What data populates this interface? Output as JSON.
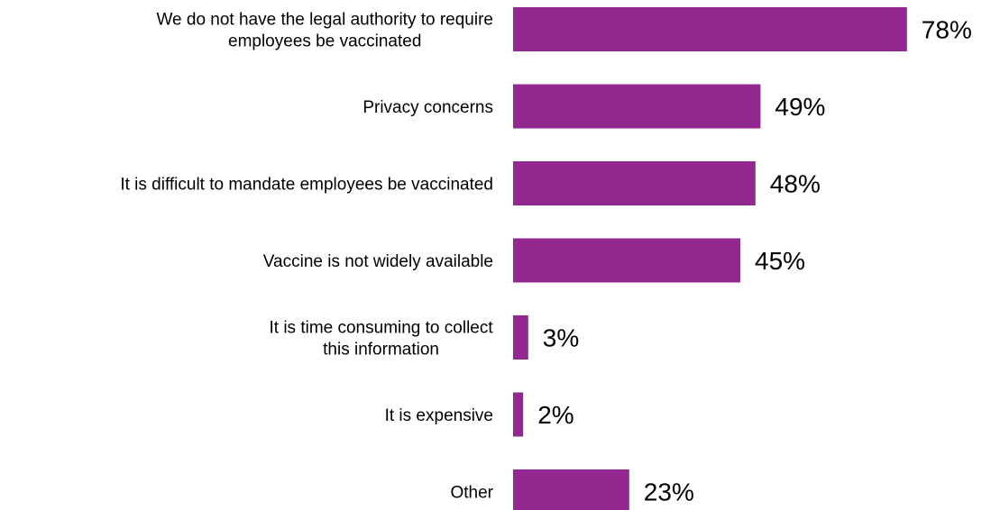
{
  "chart_data": {
    "type": "bar",
    "orientation": "horizontal",
    "categories": [
      [
        "We do not have the legal authority to require",
        "employees be vaccinated"
      ],
      [
        "Privacy concerns"
      ],
      [
        "It is difficult to mandate employees be vaccinated"
      ],
      [
        "Vaccine is not widely available"
      ],
      [
        "It is time consuming to collect",
        "this information"
      ],
      [
        "It is expensive"
      ],
      [
        "Other"
      ]
    ],
    "values": [
      78,
      49,
      48,
      45,
      3,
      2,
      23
    ],
    "value_labels": [
      "78%",
      "49%",
      "48%",
      "45%",
      "3%",
      "2%",
      "23%"
    ],
    "unit": "%",
    "bar_color": "#92278F",
    "grid": false,
    "legend": "none"
  }
}
